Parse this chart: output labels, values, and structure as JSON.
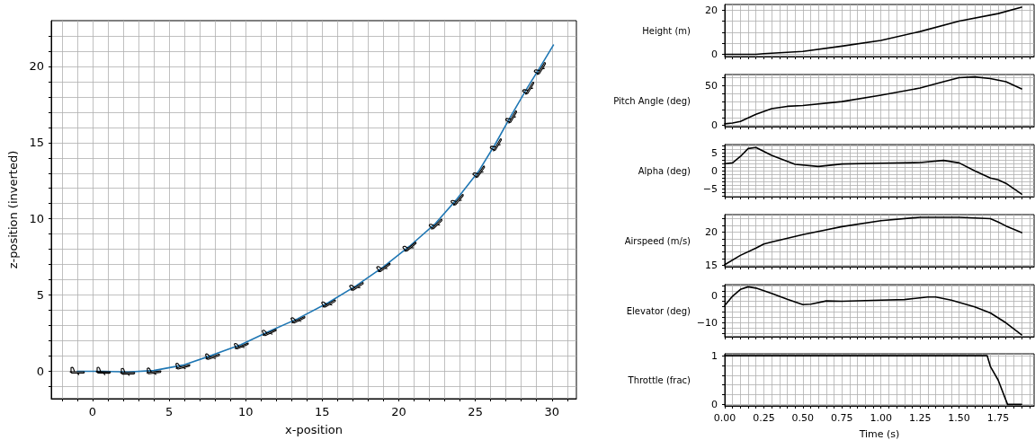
{
  "chart_data": [
    {
      "type": "line",
      "xlabel": "x-position",
      "ylabel": "z-position (inverted)",
      "grid": true,
      "line_style": "solid",
      "x": [
        -1,
        0.7,
        2.3,
        4,
        5.9,
        7.8,
        9.7,
        11.5,
        13.4,
        15.4,
        17.2,
        19,
        20.7,
        22.4,
        23.8,
        25.2,
        26.3,
        27.3,
        28.4,
        29.2,
        30.1
      ],
      "series": [
        {
          "color": "#1f77b4",
          "values": [
            0,
            0,
            -0.05,
            0.05,
            0.4,
            1.05,
            1.75,
            2.6,
            3.45,
            4.5,
            5.6,
            6.85,
            8.2,
            9.7,
            11.3,
            13.1,
            14.9,
            16.7,
            18.6,
            19.9,
            21.4
          ]
        }
      ],
      "xlim": [
        -2.7,
        31.6
      ],
      "xticks": [
        {
          "value": -2,
          "label": null
        },
        {
          "value": -1,
          "label": null
        },
        0,
        {
          "value": 1,
          "label": null
        },
        {
          "value": 2,
          "label": null
        },
        {
          "value": 3,
          "label": null
        },
        {
          "value": 4,
          "label": null
        },
        5,
        {
          "value": 6,
          "label": null
        },
        {
          "value": 7,
          "label": null
        },
        {
          "value": 8,
          "label": null
        },
        {
          "value": 9,
          "label": null
        },
        10,
        {
          "value": 11,
          "label": null
        },
        {
          "value": 12,
          "label": null
        },
        {
          "value": 13,
          "label": null
        },
        {
          "value": 14,
          "label": null
        },
        15,
        {
          "value": 16,
          "label": null
        },
        {
          "value": 17,
          "label": null
        },
        {
          "value": 18,
          "label": null
        },
        {
          "value": 19,
          "label": null
        },
        20,
        {
          "value": 21,
          "label": null
        },
        {
          "value": 22,
          "label": null
        },
        {
          "value": 23,
          "label": null
        },
        {
          "value": 24,
          "label": null
        },
        25,
        {
          "value": 26,
          "label": null
        },
        {
          "value": 27,
          "label": null
        },
        {
          "value": 28,
          "label": null
        },
        {
          "value": 29,
          "label": null
        },
        30,
        {
          "value": 31,
          "label": null
        }
      ],
      "ylim": [
        -1.8,
        23
      ],
      "yticks": [
        {
          "value": -1,
          "label": null
        },
        0,
        {
          "value": 1,
          "label": null
        },
        {
          "value": 2,
          "label": null
        },
        {
          "value": 3,
          "label": null
        },
        {
          "value": 4,
          "label": null
        },
        5,
        {
          "value": 6,
          "label": null
        },
        {
          "value": 7,
          "label": null
        },
        {
          "value": 8,
          "label": null
        },
        {
          "value": 9,
          "label": null
        },
        10,
        {
          "value": 11,
          "label": null
        },
        {
          "value": 12,
          "label": null
        },
        {
          "value": 13,
          "label": null
        },
        {
          "value": 14,
          "label": null
        },
        15,
        {
          "value": 16,
          "label": null
        },
        {
          "value": 17,
          "label": null
        },
        {
          "value": 18,
          "label": null
        },
        {
          "value": 19,
          "label": null
        },
        20,
        {
          "value": 21,
          "label": null
        },
        {
          "value": 22,
          "label": null
        }
      ]
    },
    {
      "type": "line",
      "ylabel": "Height (m)",
      "grid": true,
      "marker": "none",
      "line_style": "solid",
      "tick_labels": "y",
      "x": [
        0,
        0.2,
        0.25,
        0.5,
        0.75,
        1,
        1.25,
        1.5,
        1.75,
        1.9
      ],
      "series": [
        {
          "color": "#000000",
          "values": [
            0,
            0,
            0.3,
            1.3,
            3.7,
            6.3,
            10.3,
            15,
            18.4,
            21.3
          ]
        }
      ],
      "xlim": [
        0,
        1.98
      ],
      "xticks": [
        {
          "value": 0,
          "label": null
        },
        {
          "value": 0.05,
          "label": null
        },
        {
          "value": 0.1,
          "label": null
        },
        {
          "value": 0.15,
          "label": null
        },
        {
          "value": 0.2,
          "label": null
        },
        {
          "value": 0.25,
          "label": null
        },
        {
          "value": 0.3,
          "label": null
        },
        {
          "value": 0.35,
          "label": null
        },
        {
          "value": 0.4,
          "label": null
        },
        {
          "value": 0.45,
          "label": null
        },
        {
          "value": 0.5,
          "label": null
        },
        {
          "value": 0.55,
          "label": null
        },
        {
          "value": 0.6,
          "label": null
        },
        {
          "value": 0.65,
          "label": null
        },
        {
          "value": 0.7,
          "label": null
        },
        {
          "value": 0.75,
          "label": null
        },
        {
          "value": 0.8,
          "label": null
        },
        {
          "value": 0.85,
          "label": null
        },
        {
          "value": 0.9,
          "label": null
        },
        {
          "value": 0.95,
          "label": null
        },
        {
          "value": 1,
          "label": null
        },
        {
          "value": 1.05,
          "label": null
        },
        {
          "value": 1.1,
          "label": null
        },
        {
          "value": 1.15,
          "label": null
        },
        {
          "value": 1.2,
          "label": null
        },
        {
          "value": 1.25,
          "label": null
        },
        {
          "value": 1.3,
          "label": null
        },
        {
          "value": 1.35,
          "label": null
        },
        {
          "value": 1.4,
          "label": null
        },
        {
          "value": 1.45,
          "label": null
        },
        {
          "value": 1.5,
          "label": null
        },
        {
          "value": 1.55,
          "label": null
        },
        {
          "value": 1.6,
          "label": null
        },
        {
          "value": 1.65,
          "label": null
        },
        {
          "value": 1.7,
          "label": null
        },
        {
          "value": 1.75,
          "label": null
        },
        {
          "value": 1.8,
          "label": null
        },
        {
          "value": 1.85,
          "label": null
        },
        {
          "value": 1.9,
          "label": null
        },
        {
          "value": 1.95,
          "label": null
        }
      ],
      "ylim": [
        -1,
        22.5
      ],
      "yticks": [
        0,
        {
          "value": 5,
          "label": null
        },
        {
          "value": 10,
          "label": null
        },
        {
          "value": 15,
          "label": null
        },
        20
      ]
    },
    {
      "type": "line",
      "ylabel": "Pitch Angle (deg)",
      "grid": true,
      "marker": "none",
      "line_style": "solid",
      "tick_labels": "y",
      "x": [
        0,
        0.05,
        0.1,
        0.2,
        0.3,
        0.4,
        0.5,
        0.75,
        1,
        1.25,
        1.4,
        1.5,
        1.6,
        1.7,
        1.8,
        1.9
      ],
      "series": [
        {
          "color": "#000000",
          "values": [
            2,
            3,
            5,
            14,
            21,
            24,
            25,
            30,
            38,
            47,
            55,
            60,
            61,
            59,
            55,
            46
          ]
        }
      ],
      "xlim": [
        0,
        1.98
      ],
      "xticks": [
        {
          "value": 0,
          "label": null
        },
        {
          "value": 0.05,
          "label": null
        },
        {
          "value": 0.1,
          "label": null
        },
        {
          "value": 0.15,
          "label": null
        },
        {
          "value": 0.2,
          "label": null
        },
        {
          "value": 0.25,
          "label": null
        },
        {
          "value": 0.3,
          "label": null
        },
        {
          "value": 0.35,
          "label": null
        },
        {
          "value": 0.4,
          "label": null
        },
        {
          "value": 0.45,
          "label": null
        },
        {
          "value": 0.5,
          "label": null
        },
        {
          "value": 0.55,
          "label": null
        },
        {
          "value": 0.6,
          "label": null
        },
        {
          "value": 0.65,
          "label": null
        },
        {
          "value": 0.7,
          "label": null
        },
        {
          "value": 0.75,
          "label": null
        },
        {
          "value": 0.8,
          "label": null
        },
        {
          "value": 0.85,
          "label": null
        },
        {
          "value": 0.9,
          "label": null
        },
        {
          "value": 0.95,
          "label": null
        },
        {
          "value": 1,
          "label": null
        },
        {
          "value": 1.05,
          "label": null
        },
        {
          "value": 1.1,
          "label": null
        },
        {
          "value": 1.15,
          "label": null
        },
        {
          "value": 1.2,
          "label": null
        },
        {
          "value": 1.25,
          "label": null
        },
        {
          "value": 1.3,
          "label": null
        },
        {
          "value": 1.35,
          "label": null
        },
        {
          "value": 1.4,
          "label": null
        },
        {
          "value": 1.45,
          "label": null
        },
        {
          "value": 1.5,
          "label": null
        },
        {
          "value": 1.55,
          "label": null
        },
        {
          "value": 1.6,
          "label": null
        },
        {
          "value": 1.65,
          "label": null
        },
        {
          "value": 1.7,
          "label": null
        },
        {
          "value": 1.75,
          "label": null
        },
        {
          "value": 1.8,
          "label": null
        },
        {
          "value": 1.85,
          "label": null
        },
        {
          "value": 1.9,
          "label": null
        },
        {
          "value": 1.95,
          "label": null
        }
      ],
      "ylim": [
        -1.5,
        64
      ],
      "yticks": [
        0,
        {
          "value": 10,
          "label": null
        },
        {
          "value": 20,
          "label": null
        },
        {
          "value": 30,
          "label": null
        },
        {
          "value": 40,
          "label": null
        },
        50,
        {
          "value": 60,
          "label": null
        }
      ]
    },
    {
      "type": "line",
      "ylabel": "Alpha (deg)",
      "grid": true,
      "marker": "none",
      "line_style": "solid",
      "tick_labels": "y",
      "x": [
        0,
        0.05,
        0.1,
        0.15,
        0.2,
        0.3,
        0.45,
        0.6,
        0.75,
        1,
        1.25,
        1.4,
        1.5,
        1.6,
        1.7,
        1.75,
        1.8,
        1.9
      ],
      "series": [
        {
          "color": "#000000",
          "values": [
            2,
            2.2,
            4,
            6.2,
            6.5,
            4.3,
            1.8,
            1.2,
            1.9,
            2.1,
            2.3,
            2.9,
            2.2,
            0,
            -2,
            -2.5,
            -3.5,
            -6.5
          ]
        }
      ],
      "xlim": [
        0,
        1.98
      ],
      "xticks": [
        {
          "value": 0,
          "label": null
        },
        {
          "value": 0.05,
          "label": null
        },
        {
          "value": 0.1,
          "label": null
        },
        {
          "value": 0.15,
          "label": null
        },
        {
          "value": 0.2,
          "label": null
        },
        {
          "value": 0.25,
          "label": null
        },
        {
          "value": 0.3,
          "label": null
        },
        {
          "value": 0.35,
          "label": null
        },
        {
          "value": 0.4,
          "label": null
        },
        {
          "value": 0.45,
          "label": null
        },
        {
          "value": 0.5,
          "label": null
        },
        {
          "value": 0.55,
          "label": null
        },
        {
          "value": 0.6,
          "label": null
        },
        {
          "value": 0.65,
          "label": null
        },
        {
          "value": 0.7,
          "label": null
        },
        {
          "value": 0.75,
          "label": null
        },
        {
          "value": 0.8,
          "label": null
        },
        {
          "value": 0.85,
          "label": null
        },
        {
          "value": 0.9,
          "label": null
        },
        {
          "value": 0.95,
          "label": null
        },
        {
          "value": 1,
          "label": null
        },
        {
          "value": 1.05,
          "label": null
        },
        {
          "value": 1.1,
          "label": null
        },
        {
          "value": 1.15,
          "label": null
        },
        {
          "value": 1.2,
          "label": null
        },
        {
          "value": 1.25,
          "label": null
        },
        {
          "value": 1.3,
          "label": null
        },
        {
          "value": 1.35,
          "label": null
        },
        {
          "value": 1.4,
          "label": null
        },
        {
          "value": 1.45,
          "label": null
        },
        {
          "value": 1.5,
          "label": null
        },
        {
          "value": 1.55,
          "label": null
        },
        {
          "value": 1.6,
          "label": null
        },
        {
          "value": 1.65,
          "label": null
        },
        {
          "value": 1.7,
          "label": null
        },
        {
          "value": 1.75,
          "label": null
        },
        {
          "value": 1.8,
          "label": null
        },
        {
          "value": 1.85,
          "label": null
        },
        {
          "value": 1.9,
          "label": null
        },
        {
          "value": 1.95,
          "label": null
        }
      ],
      "ylim": [
        -7.2,
        7.3
      ],
      "yticks": [
        {
          "value": -7,
          "label": null
        },
        {
          "value": -6,
          "label": null
        },
        {
          "value": -5,
          "label": "−5"
        },
        {
          "value": -4,
          "label": null
        },
        {
          "value": -3,
          "label": null
        },
        {
          "value": -2,
          "label": null
        },
        {
          "value": -1,
          "label": null
        },
        0,
        {
          "value": 1,
          "label": null
        },
        {
          "value": 2,
          "label": null
        },
        {
          "value": 3,
          "label": null
        },
        {
          "value": 4,
          "label": null
        },
        5,
        {
          "value": 6,
          "label": null
        },
        {
          "value": 7,
          "label": null
        }
      ]
    },
    {
      "type": "line",
      "ylabel": "Airspeed (m/s)",
      "grid": true,
      "marker": "none",
      "line_style": "solid",
      "tick_labels": "y",
      "x": [
        0,
        0.1,
        0.2,
        0.25,
        0.3,
        0.5,
        0.75,
        1,
        1.25,
        1.5,
        1.7,
        1.75,
        1.8,
        1.9
      ],
      "series": [
        {
          "color": "#000000",
          "values": [
            15.1,
            16.5,
            17.6,
            18.2,
            18.5,
            19.6,
            20.8,
            21.7,
            22.2,
            22.2,
            22,
            21.5,
            20.9,
            19.9
          ]
        }
      ],
      "xlim": [
        0,
        1.98
      ],
      "xticks": [
        {
          "value": 0,
          "label": null
        },
        {
          "value": 0.05,
          "label": null
        },
        {
          "value": 0.1,
          "label": null
        },
        {
          "value": 0.15,
          "label": null
        },
        {
          "value": 0.2,
          "label": null
        },
        {
          "value": 0.25,
          "label": null
        },
        {
          "value": 0.3,
          "label": null
        },
        {
          "value": 0.35,
          "label": null
        },
        {
          "value": 0.4,
          "label": null
        },
        {
          "value": 0.45,
          "label": null
        },
        {
          "value": 0.5,
          "label": null
        },
        {
          "value": 0.55,
          "label": null
        },
        {
          "value": 0.6,
          "label": null
        },
        {
          "value": 0.65,
          "label": null
        },
        {
          "value": 0.7,
          "label": null
        },
        {
          "value": 0.75,
          "label": null
        },
        {
          "value": 0.8,
          "label": null
        },
        {
          "value": 0.85,
          "label": null
        },
        {
          "value": 0.9,
          "label": null
        },
        {
          "value": 0.95,
          "label": null
        },
        {
          "value": 1,
          "label": null
        },
        {
          "value": 1.05,
          "label": null
        },
        {
          "value": 1.1,
          "label": null
        },
        {
          "value": 1.15,
          "label": null
        },
        {
          "value": 1.2,
          "label": null
        },
        {
          "value": 1.25,
          "label": null
        },
        {
          "value": 1.3,
          "label": null
        },
        {
          "value": 1.35,
          "label": null
        },
        {
          "value": 1.4,
          "label": null
        },
        {
          "value": 1.45,
          "label": null
        },
        {
          "value": 1.5,
          "label": null
        },
        {
          "value": 1.55,
          "label": null
        },
        {
          "value": 1.6,
          "label": null
        },
        {
          "value": 1.65,
          "label": null
        },
        {
          "value": 1.7,
          "label": null
        },
        {
          "value": 1.75,
          "label": null
        },
        {
          "value": 1.8,
          "label": null
        },
        {
          "value": 1.85,
          "label": null
        },
        {
          "value": 1.9,
          "label": null
        },
        {
          "value": 1.95,
          "label": null
        }
      ],
      "ylim": [
        14.8,
        22.6
      ],
      "yticks": [
        15,
        {
          "value": 16,
          "label": null
        },
        {
          "value": 17,
          "label": null
        },
        {
          "value": 18,
          "label": null
        },
        {
          "value": 19,
          "label": null
        },
        20,
        {
          "value": 21,
          "label": null
        },
        {
          "value": 22,
          "label": null
        }
      ]
    },
    {
      "type": "line",
      "ylabel": "Elevator (deg)",
      "grid": true,
      "marker": "none",
      "line_style": "solid",
      "tick_labels": "y",
      "x": [
        0,
        0.05,
        0.1,
        0.15,
        0.2,
        0.3,
        0.4,
        0.5,
        0.55,
        0.65,
        0.75,
        1,
        1.15,
        1.3,
        1.35,
        1.45,
        1.6,
        1.7,
        1.8,
        1.9
      ],
      "series": [
        {
          "color": "#000000",
          "values": [
            -3.5,
            0,
            2.5,
            3.5,
            3,
            1,
            -1.2,
            -3.2,
            -3,
            -1.8,
            -1.9,
            -1.5,
            -1.3,
            -0.3,
            -0.3,
            -1.5,
            -4,
            -6.3,
            -10,
            -14.5
          ]
        }
      ],
      "xlim": [
        0,
        1.98
      ],
      "xticks": [
        {
          "value": 0,
          "label": null
        },
        {
          "value": 0.05,
          "label": null
        },
        {
          "value": 0.1,
          "label": null
        },
        {
          "value": 0.15,
          "label": null
        },
        {
          "value": 0.2,
          "label": null
        },
        {
          "value": 0.25,
          "label": null
        },
        {
          "value": 0.3,
          "label": null
        },
        {
          "value": 0.35,
          "label": null
        },
        {
          "value": 0.4,
          "label": null
        },
        {
          "value": 0.45,
          "label": null
        },
        {
          "value": 0.5,
          "label": null
        },
        {
          "value": 0.55,
          "label": null
        },
        {
          "value": 0.6,
          "label": null
        },
        {
          "value": 0.65,
          "label": null
        },
        {
          "value": 0.7,
          "label": null
        },
        {
          "value": 0.75,
          "label": null
        },
        {
          "value": 0.8,
          "label": null
        },
        {
          "value": 0.85,
          "label": null
        },
        {
          "value": 0.9,
          "label": null
        },
        {
          "value": 0.95,
          "label": null
        },
        {
          "value": 1,
          "label": null
        },
        {
          "value": 1.05,
          "label": null
        },
        {
          "value": 1.1,
          "label": null
        },
        {
          "value": 1.15,
          "label": null
        },
        {
          "value": 1.2,
          "label": null
        },
        {
          "value": 1.25,
          "label": null
        },
        {
          "value": 1.3,
          "label": null
        },
        {
          "value": 1.35,
          "label": null
        },
        {
          "value": 1.4,
          "label": null
        },
        {
          "value": 1.45,
          "label": null
        },
        {
          "value": 1.5,
          "label": null
        },
        {
          "value": 1.55,
          "label": null
        },
        {
          "value": 1.6,
          "label": null
        },
        {
          "value": 1.65,
          "label": null
        },
        {
          "value": 1.7,
          "label": null
        },
        {
          "value": 1.75,
          "label": null
        },
        {
          "value": 1.8,
          "label": null
        },
        {
          "value": 1.85,
          "label": null
        },
        {
          "value": 1.9,
          "label": null
        },
        {
          "value": 1.95,
          "label": null
        }
      ],
      "ylim": [
        -15.2,
        4.3
      ],
      "yticks": [
        {
          "value": -14,
          "label": null
        },
        {
          "value": -12,
          "label": null
        },
        {
          "value": -10,
          "label": "−10"
        },
        {
          "value": -8,
          "label": null
        },
        {
          "value": -6,
          "label": null
        },
        {
          "value": -4,
          "label": null
        },
        {
          "value": -2,
          "label": null
        },
        0,
        {
          "value": 2,
          "label": null
        },
        {
          "value": 4,
          "label": null
        }
      ]
    },
    {
      "type": "line",
      "xlabel": "Time (s)",
      "ylabel": "Throttle (frac)",
      "grid": true,
      "marker": "none",
      "line_style": "solid",
      "x": [
        0,
        1.68,
        1.7,
        1.75,
        1.81,
        1.9
      ],
      "series": [
        {
          "color": "#000000",
          "values": [
            1,
            1,
            0.78,
            0.5,
            0,
            0
          ]
        }
      ],
      "xlim": [
        0,
        1.98
      ],
      "xticks": [
        {
          "value": 0,
          "label": "0.00"
        },
        {
          "value": 0.05,
          "label": null
        },
        {
          "value": 0.1,
          "label": null
        },
        {
          "value": 0.15,
          "label": null
        },
        {
          "value": 0.2,
          "label": null
        },
        {
          "value": 0.25,
          "label": "0.25"
        },
        {
          "value": 0.3,
          "label": null
        },
        {
          "value": 0.35,
          "label": null
        },
        {
          "value": 0.4,
          "label": null
        },
        {
          "value": 0.45,
          "label": null
        },
        {
          "value": 0.5,
          "label": "0.50"
        },
        {
          "value": 0.55,
          "label": null
        },
        {
          "value": 0.6,
          "label": null
        },
        {
          "value": 0.65,
          "label": null
        },
        {
          "value": 0.7,
          "label": null
        },
        {
          "value": 0.75,
          "label": "0.75"
        },
        {
          "value": 0.8,
          "label": null
        },
        {
          "value": 0.85,
          "label": null
        },
        {
          "value": 0.9,
          "label": null
        },
        {
          "value": 0.95,
          "label": null
        },
        {
          "value": 1,
          "label": "1.00"
        },
        {
          "value": 1.05,
          "label": null
        },
        {
          "value": 1.1,
          "label": null
        },
        {
          "value": 1.15,
          "label": null
        },
        {
          "value": 1.2,
          "label": null
        },
        {
          "value": 1.25,
          "label": "1.25"
        },
        {
          "value": 1.3,
          "label": null
        },
        {
          "value": 1.35,
          "label": null
        },
        {
          "value": 1.4,
          "label": null
        },
        {
          "value": 1.45,
          "label": null
        },
        {
          "value": 1.5,
          "label": "1.50"
        },
        {
          "value": 1.55,
          "label": null
        },
        {
          "value": 1.6,
          "label": null
        },
        {
          "value": 1.65,
          "label": null
        },
        {
          "value": 1.7,
          "label": null
        },
        {
          "value": 1.75,
          "label": "1.75"
        },
        {
          "value": 1.8,
          "label": null
        },
        {
          "value": 1.85,
          "label": null
        },
        {
          "value": 1.9,
          "label": null
        },
        {
          "value": 1.95,
          "label": null
        }
      ],
      "ylim": [
        -0.03,
        1.04
      ],
      "yticks": [
        0,
        {
          "value": 0.2,
          "label": null
        },
        {
          "value": 0.4,
          "label": null
        },
        {
          "value": 0.6,
          "label": null
        },
        {
          "value": 0.8,
          "label": null
        },
        1
      ]
    }
  ]
}
